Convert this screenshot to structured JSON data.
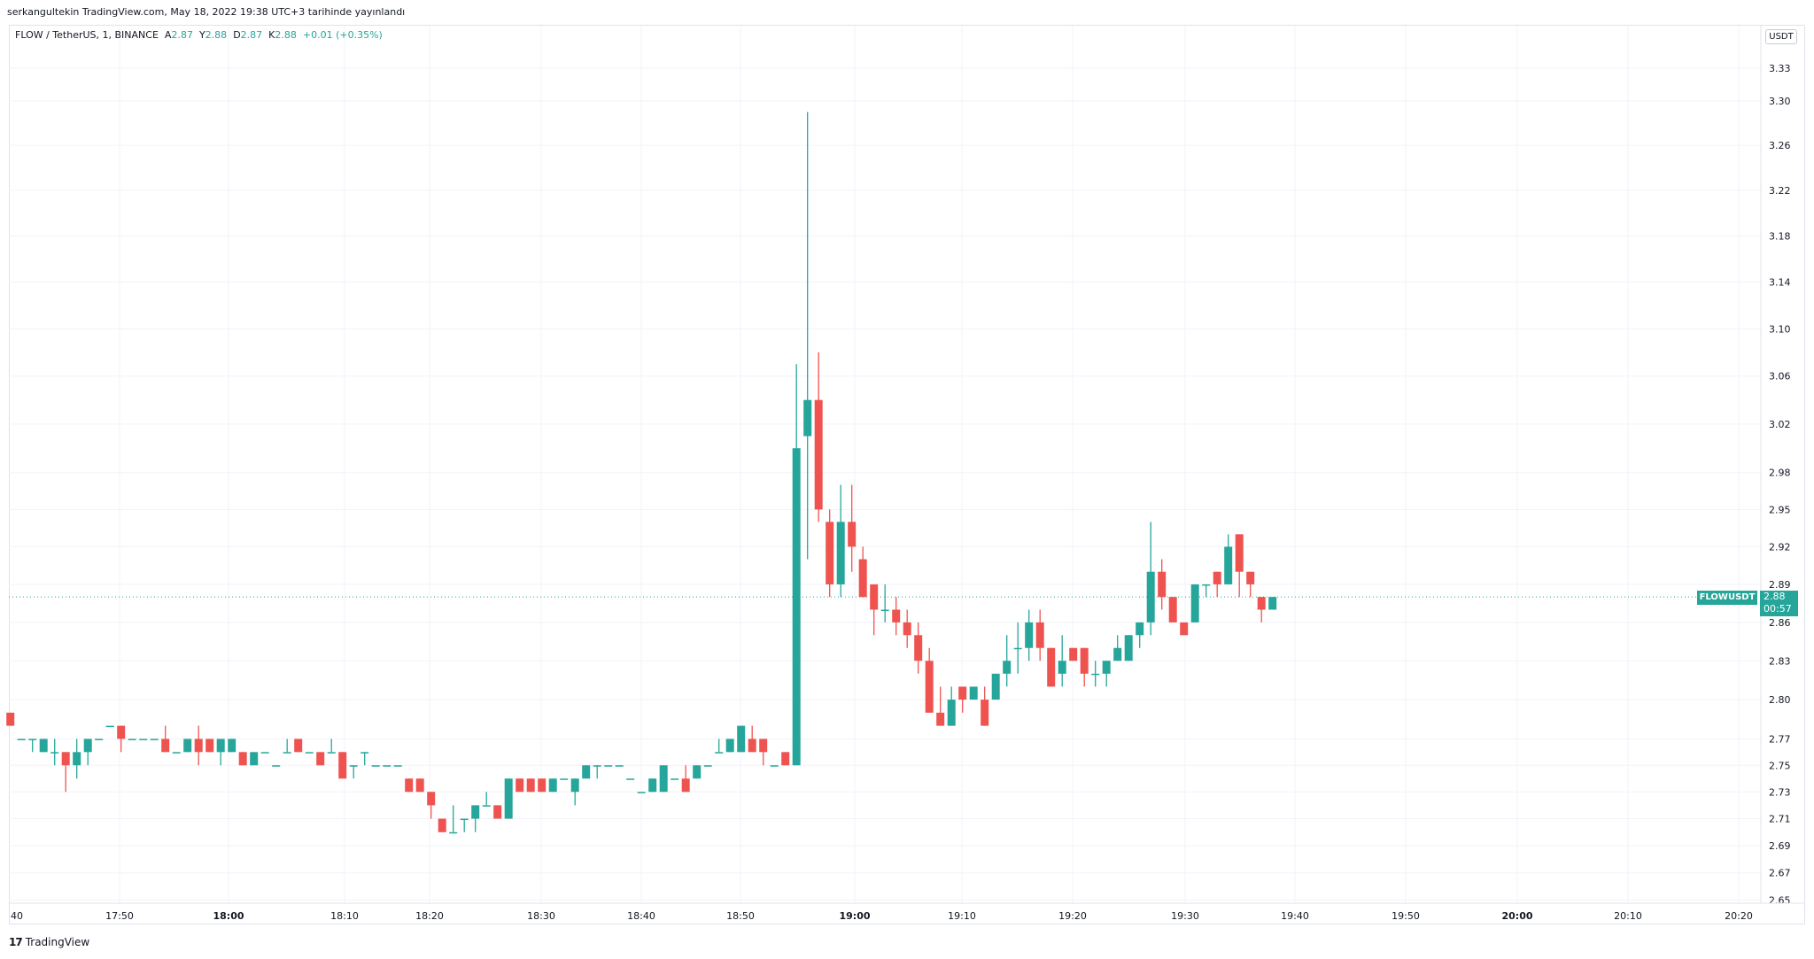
{
  "header": {
    "publish_note": "serkangultekin TradingView.com, May 18, 2022 19:38 UTC+3 tarihinde yayınlandı"
  },
  "legend": {
    "symbol": "FLOW / TetherUS, 1, BINANCE",
    "open_label": "A",
    "open": "2.87",
    "high_label": "Y",
    "high": "2.88",
    "low_label": "D",
    "low": "2.87",
    "close_label": "K",
    "close": "2.88",
    "change": "+0.01 (+0.35%)"
  },
  "price_axis": {
    "currency": "USDT",
    "symbol_label": "FLOWUSDT",
    "last_price": "2.88",
    "countdown": "00:57"
  },
  "footer": {
    "brand": "TradingView",
    "logo_text": "17"
  },
  "colors": {
    "up": "#26a69a",
    "down": "#ef5350",
    "grid": "#f0f3fa"
  },
  "chart_data": {
    "type": "candlestick",
    "interval": "1m",
    "scale": "log",
    "ylim": [
      2.65,
      3.33
    ],
    "price_ticks": [
      "3.33",
      "3.30",
      "3.26",
      "3.22",
      "3.18",
      "3.14",
      "3.10",
      "3.06",
      "3.02",
      "2.98",
      "2.95",
      "2.92",
      "2.89",
      "2.86",
      "2.83",
      "2.80",
      "2.77",
      "2.75",
      "2.73",
      "2.71",
      "2.69",
      "2.67",
      "2.65"
    ],
    "time_ticks": [
      {
        "label": "40",
        "bold": false
      },
      {
        "label": "17:50",
        "bold": false
      },
      {
        "label": "18:00",
        "bold": true
      },
      {
        "label": "18:10",
        "bold": false
      },
      {
        "label": "18:20",
        "bold": false
      },
      {
        "label": "18:30",
        "bold": false
      },
      {
        "label": "18:40",
        "bold": false
      },
      {
        "label": "18:50",
        "bold": false
      },
      {
        "label": "19:00",
        "bold": true
      },
      {
        "label": "19:10",
        "bold": false
      },
      {
        "label": "19:20",
        "bold": false
      },
      {
        "label": "19:30",
        "bold": false
      },
      {
        "label": "19:40",
        "bold": false
      },
      {
        "label": "19:50",
        "bold": false
      },
      {
        "label": "20:00",
        "bold": true
      },
      {
        "label": "20:10",
        "bold": false
      },
      {
        "label": "20:20",
        "bold": false
      }
    ],
    "last_price": 2.88,
    "ohlc": [
      [
        2.79,
        2.79,
        2.78,
        2.78
      ],
      [
        2.77,
        2.77,
        2.77,
        2.77
      ],
      [
        2.77,
        2.77,
        2.76,
        2.77
      ],
      [
        2.76,
        2.77,
        2.76,
        2.77
      ],
      [
        2.76,
        2.77,
        2.75,
        2.76
      ],
      [
        2.76,
        2.76,
        2.73,
        2.75
      ],
      [
        2.75,
        2.77,
        2.74,
        2.76
      ],
      [
        2.76,
        2.77,
        2.75,
        2.77
      ],
      [
        2.77,
        2.77,
        2.77,
        2.77
      ],
      [
        2.78,
        2.78,
        2.78,
        2.78
      ],
      [
        2.78,
        2.78,
        2.76,
        2.77
      ],
      [
        2.77,
        2.77,
        2.77,
        2.77
      ],
      [
        2.77,
        2.77,
        2.77,
        2.77
      ],
      [
        2.77,
        2.77,
        2.77,
        2.77
      ],
      [
        2.77,
        2.78,
        2.76,
        2.76
      ],
      [
        2.76,
        2.76,
        2.76,
        2.76
      ],
      [
        2.76,
        2.77,
        2.76,
        2.77
      ],
      [
        2.77,
        2.78,
        2.75,
        2.76
      ],
      [
        2.77,
        2.77,
        2.76,
        2.76
      ],
      [
        2.76,
        2.77,
        2.75,
        2.77
      ],
      [
        2.76,
        2.77,
        2.76,
        2.77
      ],
      [
        2.76,
        2.76,
        2.75,
        2.75
      ],
      [
        2.75,
        2.76,
        2.75,
        2.76
      ],
      [
        2.76,
        2.76,
        2.76,
        2.76
      ],
      [
        2.75,
        2.75,
        2.75,
        2.75
      ],
      [
        2.76,
        2.77,
        2.76,
        2.76
      ],
      [
        2.77,
        2.77,
        2.76,
        2.76
      ],
      [
        2.76,
        2.76,
        2.76,
        2.76
      ],
      [
        2.76,
        2.76,
        2.75,
        2.75
      ],
      [
        2.76,
        2.77,
        2.76,
        2.76
      ],
      [
        2.76,
        2.76,
        2.74,
        2.74
      ],
      [
        2.75,
        2.75,
        2.74,
        2.75
      ],
      [
        2.76,
        2.76,
        2.75,
        2.76
      ],
      [
        2.75,
        2.75,
        2.75,
        2.75
      ],
      [
        2.75,
        2.75,
        2.75,
        2.75
      ],
      [
        2.75,
        2.75,
        2.75,
        2.75
      ],
      [
        2.74,
        2.74,
        2.73,
        2.73
      ],
      [
        2.74,
        2.74,
        2.73,
        2.73
      ],
      [
        2.73,
        2.73,
        2.71,
        2.72
      ],
      [
        2.71,
        2.71,
        2.7,
        2.7
      ],
      [
        2.7,
        2.72,
        2.7,
        2.7
      ],
      [
        2.71,
        2.71,
        2.7,
        2.71
      ],
      [
        2.71,
        2.72,
        2.7,
        2.72
      ],
      [
        2.72,
        2.73,
        2.72,
        2.72
      ],
      [
        2.72,
        2.72,
        2.71,
        2.71
      ],
      [
        2.71,
        2.74,
        2.71,
        2.74
      ],
      [
        2.74,
        2.74,
        2.73,
        2.73
      ],
      [
        2.74,
        2.74,
        2.73,
        2.73
      ],
      [
        2.74,
        2.74,
        2.73,
        2.73
      ],
      [
        2.73,
        2.74,
        2.73,
        2.74
      ],
      [
        2.74,
        2.74,
        2.74,
        2.74
      ],
      [
        2.73,
        2.74,
        2.72,
        2.74
      ],
      [
        2.74,
        2.75,
        2.74,
        2.75
      ],
      [
        2.75,
        2.75,
        2.74,
        2.75
      ],
      [
        2.75,
        2.75,
        2.75,
        2.75
      ],
      [
        2.75,
        2.75,
        2.75,
        2.75
      ],
      [
        2.74,
        2.74,
        2.74,
        2.74
      ],
      [
        2.73,
        2.73,
        2.73,
        2.73
      ],
      [
        2.73,
        2.74,
        2.73,
        2.74
      ],
      [
        2.73,
        2.75,
        2.73,
        2.75
      ],
      [
        2.74,
        2.74,
        2.74,
        2.74
      ],
      [
        2.74,
        2.75,
        2.73,
        2.73
      ],
      [
        2.74,
        2.75,
        2.74,
        2.75
      ],
      [
        2.75,
        2.75,
        2.75,
        2.75
      ],
      [
        2.76,
        2.77,
        2.76,
        2.76
      ],
      [
        2.76,
        2.77,
        2.76,
        2.77
      ],
      [
        2.76,
        2.78,
        2.76,
        2.78
      ],
      [
        2.77,
        2.78,
        2.76,
        2.76
      ],
      [
        2.77,
        2.77,
        2.75,
        2.76
      ],
      [
        2.75,
        2.75,
        2.75,
        2.75
      ],
      [
        2.76,
        2.76,
        2.75,
        2.75
      ],
      [
        2.75,
        3.07,
        2.75,
        3.0
      ],
      [
        3.01,
        3.29,
        2.91,
        3.04
      ],
      [
        3.04,
        3.08,
        2.94,
        2.95
      ],
      [
        2.94,
        2.95,
        2.88,
        2.89
      ],
      [
        2.89,
        2.97,
        2.88,
        2.94
      ],
      [
        2.94,
        2.97,
        2.9,
        2.92
      ],
      [
        2.91,
        2.92,
        2.88,
        2.88
      ],
      [
        2.89,
        2.89,
        2.85,
        2.87
      ],
      [
        2.87,
        2.89,
        2.86,
        2.87
      ],
      [
        2.87,
        2.88,
        2.85,
        2.86
      ],
      [
        2.86,
        2.87,
        2.84,
        2.85
      ],
      [
        2.85,
        2.86,
        2.82,
        2.83
      ],
      [
        2.83,
        2.84,
        2.79,
        2.79
      ],
      [
        2.79,
        2.81,
        2.78,
        2.78
      ],
      [
        2.78,
        2.81,
        2.78,
        2.8
      ],
      [
        2.81,
        2.81,
        2.79,
        2.8
      ],
      [
        2.8,
        2.81,
        2.8,
        2.81
      ],
      [
        2.8,
        2.81,
        2.78,
        2.78
      ],
      [
        2.8,
        2.82,
        2.8,
        2.82
      ],
      [
        2.82,
        2.85,
        2.81,
        2.83
      ],
      [
        2.84,
        2.86,
        2.82,
        2.84
      ],
      [
        2.84,
        2.87,
        2.83,
        2.86
      ],
      [
        2.86,
        2.87,
        2.83,
        2.84
      ],
      [
        2.84,
        2.84,
        2.81,
        2.81
      ],
      [
        2.82,
        2.85,
        2.81,
        2.83
      ],
      [
        2.84,
        2.84,
        2.83,
        2.83
      ],
      [
        2.84,
        2.84,
        2.81,
        2.82
      ],
      [
        2.82,
        2.83,
        2.81,
        2.82
      ],
      [
        2.82,
        2.83,
        2.81,
        2.83
      ],
      [
        2.83,
        2.85,
        2.83,
        2.84
      ],
      [
        2.83,
        2.85,
        2.83,
        2.85
      ],
      [
        2.85,
        2.86,
        2.84,
        2.86
      ],
      [
        2.86,
        2.94,
        2.85,
        2.9
      ],
      [
        2.9,
        2.91,
        2.87,
        2.88
      ],
      [
        2.88,
        2.88,
        2.86,
        2.86
      ],
      [
        2.86,
        2.86,
        2.85,
        2.85
      ],
      [
        2.86,
        2.89,
        2.86,
        2.89
      ],
      [
        2.89,
        2.89,
        2.88,
        2.89
      ],
      [
        2.9,
        2.9,
        2.88,
        2.89
      ],
      [
        2.89,
        2.93,
        2.89,
        2.92
      ],
      [
        2.93,
        2.93,
        2.88,
        2.9
      ],
      [
        2.9,
        2.9,
        2.88,
        2.89
      ],
      [
        2.88,
        2.88,
        2.86,
        2.87
      ],
      [
        2.87,
        2.88,
        2.87,
        2.88
      ]
    ]
  }
}
